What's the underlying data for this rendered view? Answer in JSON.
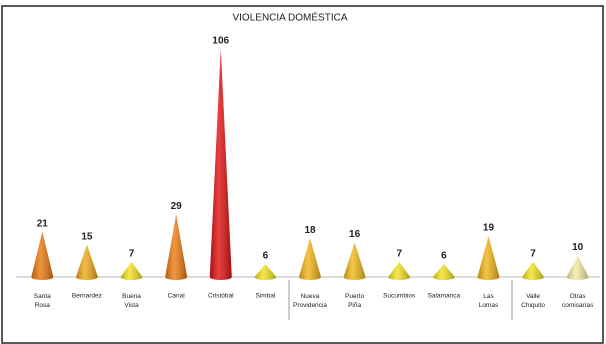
{
  "chart_data": {
    "type": "cone-bar",
    "title": "VIOLENCIA DOMÉSTICA",
    "categories": [
      "Santa Rosa",
      "Bernardez",
      "Buena Vista",
      "Canal",
      "Cristóbal",
      "Simbal",
      "Nueva Providencia",
      "Puerto Piña",
      "Sucumbios",
      "Salamanca",
      "Las Lomas",
      "Valle Chiquito",
      "Otras comisarías"
    ],
    "values": [
      21,
      15,
      7,
      29,
      106,
      6,
      18,
      16,
      7,
      6,
      19,
      7,
      10
    ],
    "colors": [
      "#e8780c",
      "#f0a818",
      "#f2e020",
      "#ec7a10",
      "#e01010",
      "#f2e020",
      "#f0b418",
      "#f0b818",
      "#f2e020",
      "#f2e020",
      "#f0b418",
      "#f2e020",
      "#f4eba0"
    ],
    "ylim": [
      0,
      110
    ]
  }
}
